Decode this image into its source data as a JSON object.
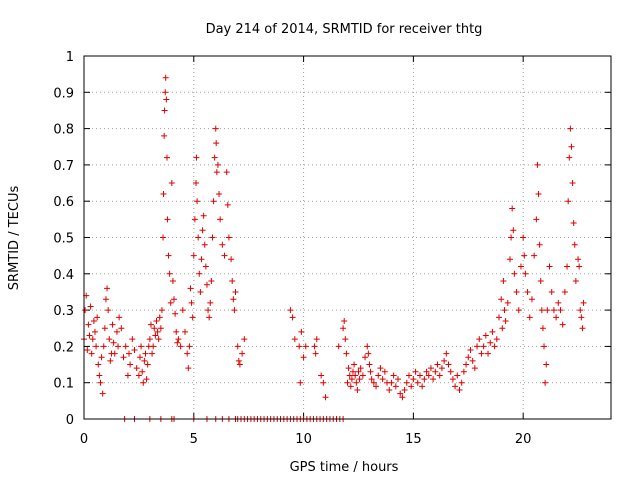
{
  "chart_data": {
    "type": "scatter",
    "title": "Day 214 of 2014, SRMTID for receiver thtg",
    "xlabel": "GPS time / hours",
    "ylabel": "SRMTID / TECUs",
    "xlim": [
      0,
      24
    ],
    "ylim": [
      0,
      1
    ],
    "xticks": [
      0,
      5,
      10,
      15,
      20
    ],
    "xtick_labels": [
      "0",
      "5",
      "10",
      "15",
      "20"
    ],
    "yticks": [
      0,
      0.1,
      0.2,
      0.3,
      0.4,
      0.5,
      0.6,
      0.7,
      0.8,
      0.9,
      1
    ],
    "ytick_labels": [
      "0",
      "0.1",
      "0.2",
      "0.3",
      "0.4",
      "0.5",
      "0.6",
      "0.7",
      "0.8",
      "0.9",
      "1"
    ],
    "grid": true,
    "marker": "+",
    "marker_color": "#e00000",
    "series": [
      {
        "name": "SRMTID",
        "points": [
          [
            0.0,
            0.22
          ],
          [
            0.05,
            0.3
          ],
          [
            0.1,
            0.34
          ],
          [
            0.15,
            0.19
          ],
          [
            0.2,
            0.26
          ],
          [
            0.25,
            0.23
          ],
          [
            0.3,
            0.31
          ],
          [
            0.35,
            0.18
          ],
          [
            0.4,
            0.22
          ],
          [
            0.45,
            0.27
          ],
          [
            0.5,
            0.24
          ],
          [
            0.55,
            0.2
          ],
          [
            0.6,
            0.28
          ],
          [
            0.65,
            0.15
          ],
          [
            0.7,
            0.12
          ],
          [
            0.75,
            0.1
          ],
          [
            0.8,
            0.17
          ],
          [
            0.85,
            0.07
          ],
          [
            0.9,
            0.2
          ],
          [
            0.95,
            0.25
          ],
          [
            1.0,
            0.33
          ],
          [
            1.05,
            0.36
          ],
          [
            1.1,
            0.3
          ],
          [
            1.15,
            0.22
          ],
          [
            1.2,
            0.16
          ],
          [
            1.25,
            0.18
          ],
          [
            1.3,
            0.26
          ],
          [
            1.35,
            0.21
          ],
          [
            1.4,
            0.18
          ],
          [
            1.5,
            0.24
          ],
          [
            1.55,
            0.2
          ],
          [
            1.6,
            0.28
          ],
          [
            1.7,
            0.25
          ],
          [
            1.8,
            0.17
          ],
          [
            1.9,
            0.2
          ],
          [
            2.0,
            0.12
          ],
          [
            2.05,
            0.18
          ],
          [
            2.1,
            0.15
          ],
          [
            2.2,
            0.22
          ],
          [
            2.3,
            0.19
          ],
          [
            2.4,
            0.14
          ],
          [
            2.5,
            0.12
          ],
          [
            2.55,
            0.17
          ],
          [
            2.6,
            0.2
          ],
          [
            2.65,
            0.13
          ],
          [
            2.7,
            0.1
          ],
          [
            2.75,
            0.16
          ],
          [
            2.8,
            0.18
          ],
          [
            2.85,
            0.11
          ],
          [
            2.9,
            0.15
          ],
          [
            2.95,
            0.2
          ],
          [
            3.0,
            0.22
          ],
          [
            3.05,
            0.26
          ],
          [
            3.1,
            0.18
          ],
          [
            3.15,
            0.2
          ],
          [
            3.2,
            0.25
          ],
          [
            3.25,
            0.23
          ],
          [
            3.3,
            0.27
          ],
          [
            3.35,
            0.24
          ],
          [
            3.4,
            0.22
          ],
          [
            3.45,
            0.28
          ],
          [
            3.5,
            0.25
          ],
          [
            3.55,
            0.3
          ],
          [
            3.6,
            0.5
          ],
          [
            3.62,
            0.62
          ],
          [
            3.65,
            0.78
          ],
          [
            3.67,
            0.85
          ],
          [
            3.7,
            0.9
          ],
          [
            3.72,
            0.94
          ],
          [
            3.75,
            0.88
          ],
          [
            3.78,
            0.72
          ],
          [
            3.8,
            0.55
          ],
          [
            3.85,
            0.45
          ],
          [
            3.9,
            0.4
          ],
          [
            3.95,
            0.32
          ],
          [
            4.0,
            0.65
          ],
          [
            4.05,
            0.38
          ],
          [
            4.1,
            0.33
          ],
          [
            4.15,
            0.29
          ],
          [
            4.2,
            0.24
          ],
          [
            4.25,
            0.21
          ],
          [
            4.3,
            0.22
          ],
          [
            4.4,
            0.2
          ],
          [
            4.5,
            0.3
          ],
          [
            4.6,
            0.24
          ],
          [
            4.7,
            0.18
          ],
          [
            4.75,
            0.14
          ],
          [
            4.8,
            0.2
          ],
          [
            4.85,
            0.36
          ],
          [
            4.9,
            0.32
          ],
          [
            4.95,
            0.28
          ],
          [
            5.0,
            0.45
          ],
          [
            5.05,
            0.55
          ],
          [
            5.1,
            0.65
          ],
          [
            5.12,
            0.72
          ],
          [
            5.15,
            0.6
          ],
          [
            5.2,
            0.5
          ],
          [
            5.25,
            0.4
          ],
          [
            5.3,
            0.35
          ],
          [
            5.35,
            0.44
          ],
          [
            5.4,
            0.52
          ],
          [
            5.45,
            0.56
          ],
          [
            5.5,
            0.48
          ],
          [
            5.55,
            0.42
          ],
          [
            5.6,
            0.37
          ],
          [
            5.65,
            0.3
          ],
          [
            5.7,
            0.28
          ],
          [
            5.75,
            0.32
          ],
          [
            5.8,
            0.38
          ],
          [
            5.85,
            0.5
          ],
          [
            5.9,
            0.6
          ],
          [
            5.95,
            0.72
          ],
          [
            6.0,
            0.8
          ],
          [
            6.02,
            0.76
          ],
          [
            6.05,
            0.68
          ],
          [
            6.1,
            0.7
          ],
          [
            6.15,
            0.62
          ],
          [
            6.2,
            0.55
          ],
          [
            6.3,
            0.48
          ],
          [
            6.4,
            0.45
          ],
          [
            6.5,
            0.68
          ],
          [
            6.55,
            0.59
          ],
          [
            6.6,
            0.5
          ],
          [
            6.7,
            0.44
          ],
          [
            6.75,
            0.38
          ],
          [
            6.8,
            0.33
          ],
          [
            6.85,
            0.3
          ],
          [
            6.9,
            0.35
          ],
          [
            7.0,
            0.2
          ],
          [
            7.05,
            0.16
          ],
          [
            7.1,
            0.15
          ],
          [
            7.2,
            0.18
          ],
          [
            7.3,
            0.22
          ],
          [
            9.4,
            0.3
          ],
          [
            9.5,
            0.28
          ],
          [
            9.6,
            0.22
          ],
          [
            9.8,
            0.2
          ],
          [
            9.85,
            0.1
          ],
          [
            9.9,
            0.24
          ],
          [
            10.0,
            0.17
          ],
          [
            10.1,
            0.2
          ],
          [
            10.5,
            0.2
          ],
          [
            10.55,
            0.18
          ],
          [
            10.6,
            0.22
          ],
          [
            10.8,
            0.12
          ],
          [
            10.9,
            0.1
          ],
          [
            11.0,
            0.06
          ],
          [
            11.6,
            0.2
          ],
          [
            11.8,
            0.25
          ],
          [
            11.85,
            0.27
          ],
          [
            11.9,
            0.22
          ],
          [
            11.95,
            0.18
          ],
          [
            12.0,
            0.1
          ],
          [
            12.05,
            0.14
          ],
          [
            12.1,
            0.12
          ],
          [
            12.15,
            0.09
          ],
          [
            12.2,
            0.11
          ],
          [
            12.25,
            0.13
          ],
          [
            12.3,
            0.15
          ],
          [
            12.35,
            0.12
          ],
          [
            12.4,
            0.1
          ],
          [
            12.45,
            0.08
          ],
          [
            12.5,
            0.13
          ],
          [
            12.55,
            0.11
          ],
          [
            12.6,
            0.14
          ],
          [
            12.7,
            0.12
          ],
          [
            12.8,
            0.17
          ],
          [
            12.9,
            0.2
          ],
          [
            12.95,
            0.18
          ],
          [
            13.0,
            0.15
          ],
          [
            13.05,
            0.13
          ],
          [
            13.1,
            0.11
          ],
          [
            13.2,
            0.1
          ],
          [
            13.3,
            0.09
          ],
          [
            13.4,
            0.12
          ],
          [
            13.5,
            0.14
          ],
          [
            13.6,
            0.11
          ],
          [
            13.7,
            0.13
          ],
          [
            13.8,
            0.1
          ],
          [
            13.9,
            0.08
          ],
          [
            14.0,
            0.1
          ],
          [
            14.1,
            0.12
          ],
          [
            14.2,
            0.09
          ],
          [
            14.3,
            0.11
          ],
          [
            14.4,
            0.07
          ],
          [
            14.5,
            0.06
          ],
          [
            14.6,
            0.08
          ],
          [
            14.7,
            0.1
          ],
          [
            14.8,
            0.12
          ],
          [
            14.9,
            0.09
          ],
          [
            15.0,
            0.11
          ],
          [
            15.1,
            0.13
          ],
          [
            15.2,
            0.1
          ],
          [
            15.3,
            0.12
          ],
          [
            15.4,
            0.09
          ],
          [
            15.5,
            0.11
          ],
          [
            15.6,
            0.13
          ],
          [
            15.7,
            0.12
          ],
          [
            15.8,
            0.14
          ],
          [
            15.9,
            0.11
          ],
          [
            16.0,
            0.13
          ],
          [
            16.1,
            0.15
          ],
          [
            16.2,
            0.12
          ],
          [
            16.3,
            0.14
          ],
          [
            16.4,
            0.16
          ],
          [
            16.5,
            0.18
          ],
          [
            16.6,
            0.15
          ],
          [
            16.7,
            0.13
          ],
          [
            16.8,
            0.11
          ],
          [
            16.9,
            0.09
          ],
          [
            17.0,
            0.12
          ],
          [
            17.1,
            0.08
          ],
          [
            17.2,
            0.1
          ],
          [
            17.3,
            0.13
          ],
          [
            17.4,
            0.15
          ],
          [
            17.5,
            0.17
          ],
          [
            17.6,
            0.19
          ],
          [
            17.7,
            0.16
          ],
          [
            17.8,
            0.14
          ],
          [
            17.9,
            0.2
          ],
          [
            18.0,
            0.22
          ],
          [
            18.1,
            0.18
          ],
          [
            18.2,
            0.2
          ],
          [
            18.3,
            0.23
          ],
          [
            18.4,
            0.18
          ],
          [
            18.5,
            0.21
          ],
          [
            18.6,
            0.24
          ],
          [
            18.7,
            0.2
          ],
          [
            18.8,
            0.22
          ],
          [
            18.9,
            0.28
          ],
          [
            19.0,
            0.33
          ],
          [
            19.05,
            0.25
          ],
          [
            19.1,
            0.38
          ],
          [
            19.15,
            0.3
          ],
          [
            19.2,
            0.27
          ],
          [
            19.3,
            0.32
          ],
          [
            19.4,
            0.44
          ],
          [
            19.45,
            0.5
          ],
          [
            19.5,
            0.58
          ],
          [
            19.55,
            0.52
          ],
          [
            19.6,
            0.4
          ],
          [
            19.7,
            0.35
          ],
          [
            19.8,
            0.3
          ],
          [
            19.9,
            0.42
          ],
          [
            20.0,
            0.5
          ],
          [
            20.05,
            0.45
          ],
          [
            20.1,
            0.4
          ],
          [
            20.2,
            0.35
          ],
          [
            20.3,
            0.28
          ],
          [
            20.4,
            0.33
          ],
          [
            20.5,
            0.45
          ],
          [
            20.6,
            0.55
          ],
          [
            20.65,
            0.7
          ],
          [
            20.7,
            0.62
          ],
          [
            20.75,
            0.48
          ],
          [
            20.8,
            0.38
          ],
          [
            20.85,
            0.3
          ],
          [
            20.9,
            0.25
          ],
          [
            20.95,
            0.2
          ],
          [
            21.0,
            0.1
          ],
          [
            21.05,
            0.15
          ],
          [
            21.1,
            0.3
          ],
          [
            21.2,
            0.42
          ],
          [
            21.3,
            0.35
          ],
          [
            21.4,
            0.3
          ],
          [
            21.5,
            0.28
          ],
          [
            21.6,
            0.32
          ],
          [
            21.7,
            0.3
          ],
          [
            21.8,
            0.26
          ],
          [
            21.9,
            0.35
          ],
          [
            22.0,
            0.42
          ],
          [
            22.05,
            0.6
          ],
          [
            22.1,
            0.72
          ],
          [
            22.15,
            0.8
          ],
          [
            22.2,
            0.75
          ],
          [
            22.25,
            0.65
          ],
          [
            22.3,
            0.54
          ],
          [
            22.35,
            0.48
          ],
          [
            22.4,
            0.38
          ],
          [
            22.5,
            0.44
          ],
          [
            22.55,
            0.42
          ],
          [
            22.6,
            0.3
          ],
          [
            22.65,
            0.28
          ],
          [
            22.7,
            0.25
          ],
          [
            22.75,
            0.32
          ]
        ],
        "zero_points": [
          1.85,
          2.3,
          3.0,
          3.5,
          4.0,
          4.1,
          5.0,
          5.6,
          6.0,
          6.3,
          6.6,
          6.9,
          7.0,
          7.15,
          7.3,
          7.45,
          7.6,
          7.75,
          7.9,
          8.05,
          8.2,
          8.35,
          8.5,
          8.65,
          8.8,
          8.95,
          9.1,
          9.25,
          9.4,
          9.55,
          9.7,
          9.85,
          10.0,
          10.15,
          10.3,
          10.45,
          10.6,
          10.75,
          10.9,
          11.05,
          11.2,
          11.35,
          11.5,
          11.65,
          11.8
        ]
      }
    ]
  }
}
